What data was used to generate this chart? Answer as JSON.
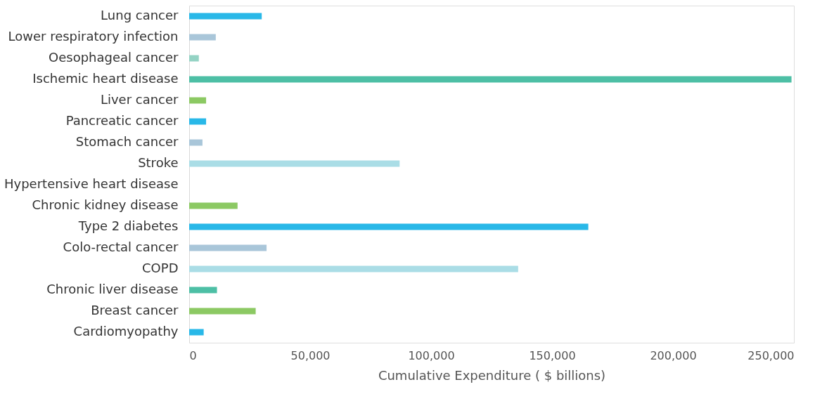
{
  "chart_data": {
    "type": "bar",
    "orientation": "horizontal",
    "xlabel": "Cumulative Expenditure ( $ billions)",
    "categories": [
      "Lung cancer",
      "Lower respiratory infection",
      "Oesophageal cancer",
      "Ischemic heart disease",
      "Liver cancer",
      "Pancreatic cancer",
      "Stomach cancer",
      "Stroke",
      "Hypertensive heart disease",
      "Chronic kidney disease",
      "Type 2 diabetes",
      "Colo-rectal cancer",
      "COPD",
      "Chronic liver disease",
      "Breast cancer",
      "Cardiomyopathy"
    ],
    "values": [
      30000,
      11000,
      4000,
      249000,
      7000,
      7000,
      5500,
      87000,
      0,
      20000,
      165000,
      32000,
      136000,
      11500,
      27500,
      6000
    ],
    "colors": [
      "#29b8e8",
      "#a9c6d9",
      "#94d3c4",
      "#4dbfa5",
      "#8cc963",
      "#29b8e8",
      "#a9c6d9",
      "#aadde6",
      "#94d3c4",
      "#8cc963",
      "#29b8e8",
      "#a9c6d9",
      "#aadde6",
      "#4dbfa5",
      "#8cc963",
      "#29b8e8"
    ],
    "xlim": [
      0,
      250000
    ],
    "xticks": [
      0,
      {
        "value": 50000,
        "label": "50,000"
      },
      {
        "value": 100000,
        "label": "100,000"
      },
      {
        "value": 150000,
        "label": "150,000"
      },
      {
        "value": 200000,
        "label": "200,000"
      },
      {
        "value": 250000,
        "label": "250,000"
      }
    ],
    "grid": false
  }
}
